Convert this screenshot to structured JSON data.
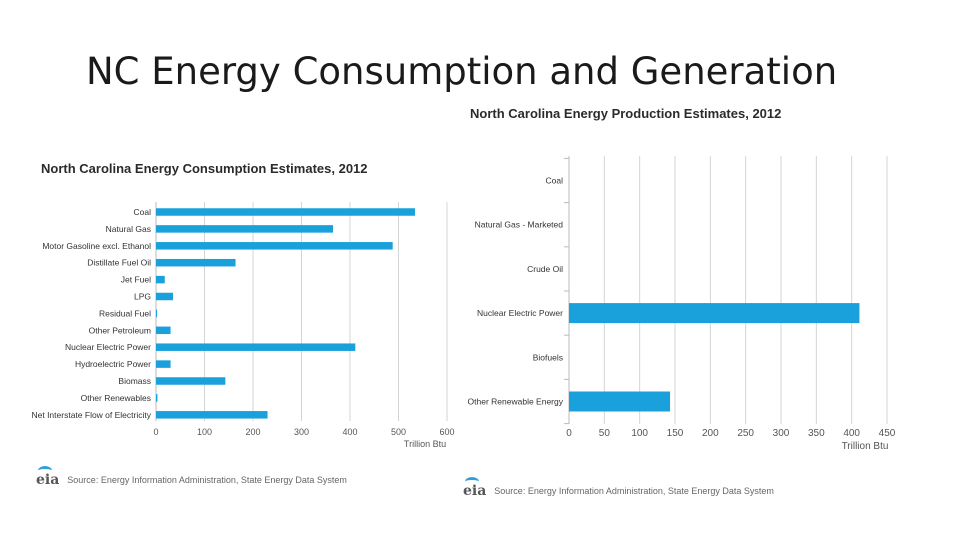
{
  "slide": {
    "title": "NC Energy Consumption and Generation"
  },
  "consumption_title": "North Carolina Energy Consumption Estimates, 2012",
  "production_title": "North Carolina Energy Production Estimates, 2012",
  "sources": {
    "left": {
      "logo": "eia",
      "text": "Source: Energy Information Administration, State Energy Data System"
    },
    "right": {
      "logo": "eia",
      "text": "Source: Energy Information Administration, State Energy Data System"
    }
  },
  "colors": {
    "bar": "#1aa1dc",
    "grid": "#d4d4d4",
    "axis_text": "#555555"
  },
  "chart_data": [
    {
      "type": "bar",
      "orientation": "horizontal",
      "title": "North Carolina Energy Consumption Estimates, 2012",
      "categories": [
        "Coal",
        "Natural Gas",
        "Motor Gasoline excl. Ethanol",
        "Distillate Fuel Oil",
        "Jet Fuel",
        "LPG",
        "Residual Fuel",
        "Other Petroleum",
        "Nuclear Electric Power",
        "Hydroelectric Power",
        "Biomass",
        "Other Renewables",
        "Net Interstate Flow of Electricity"
      ],
      "values": [
        534,
        365,
        488,
        164,
        18,
        35,
        1,
        30,
        411,
        30,
        143,
        3,
        230
      ],
      "xticks": [
        0,
        100,
        200,
        300,
        400,
        500,
        600
      ],
      "xlim": [
        0,
        600
      ],
      "xlabel": "Trillion Btu",
      "grid": true
    },
    {
      "type": "bar",
      "orientation": "horizontal",
      "title": "North Carolina Energy Production Estimates, 2012",
      "categories": [
        "Coal",
        "Natural Gas - Marketed",
        "Crude Oil",
        "Nuclear Electric Power",
        "Biofuels",
        "Other Renewable Energy"
      ],
      "values": [
        0,
        0,
        0,
        411,
        0,
        143
      ],
      "xticks": [
        0,
        50,
        100,
        150,
        200,
        250,
        300,
        350,
        400,
        450
      ],
      "xlim": [
        0,
        450
      ],
      "xlabel": "Trillion Btu",
      "grid": true
    }
  ]
}
